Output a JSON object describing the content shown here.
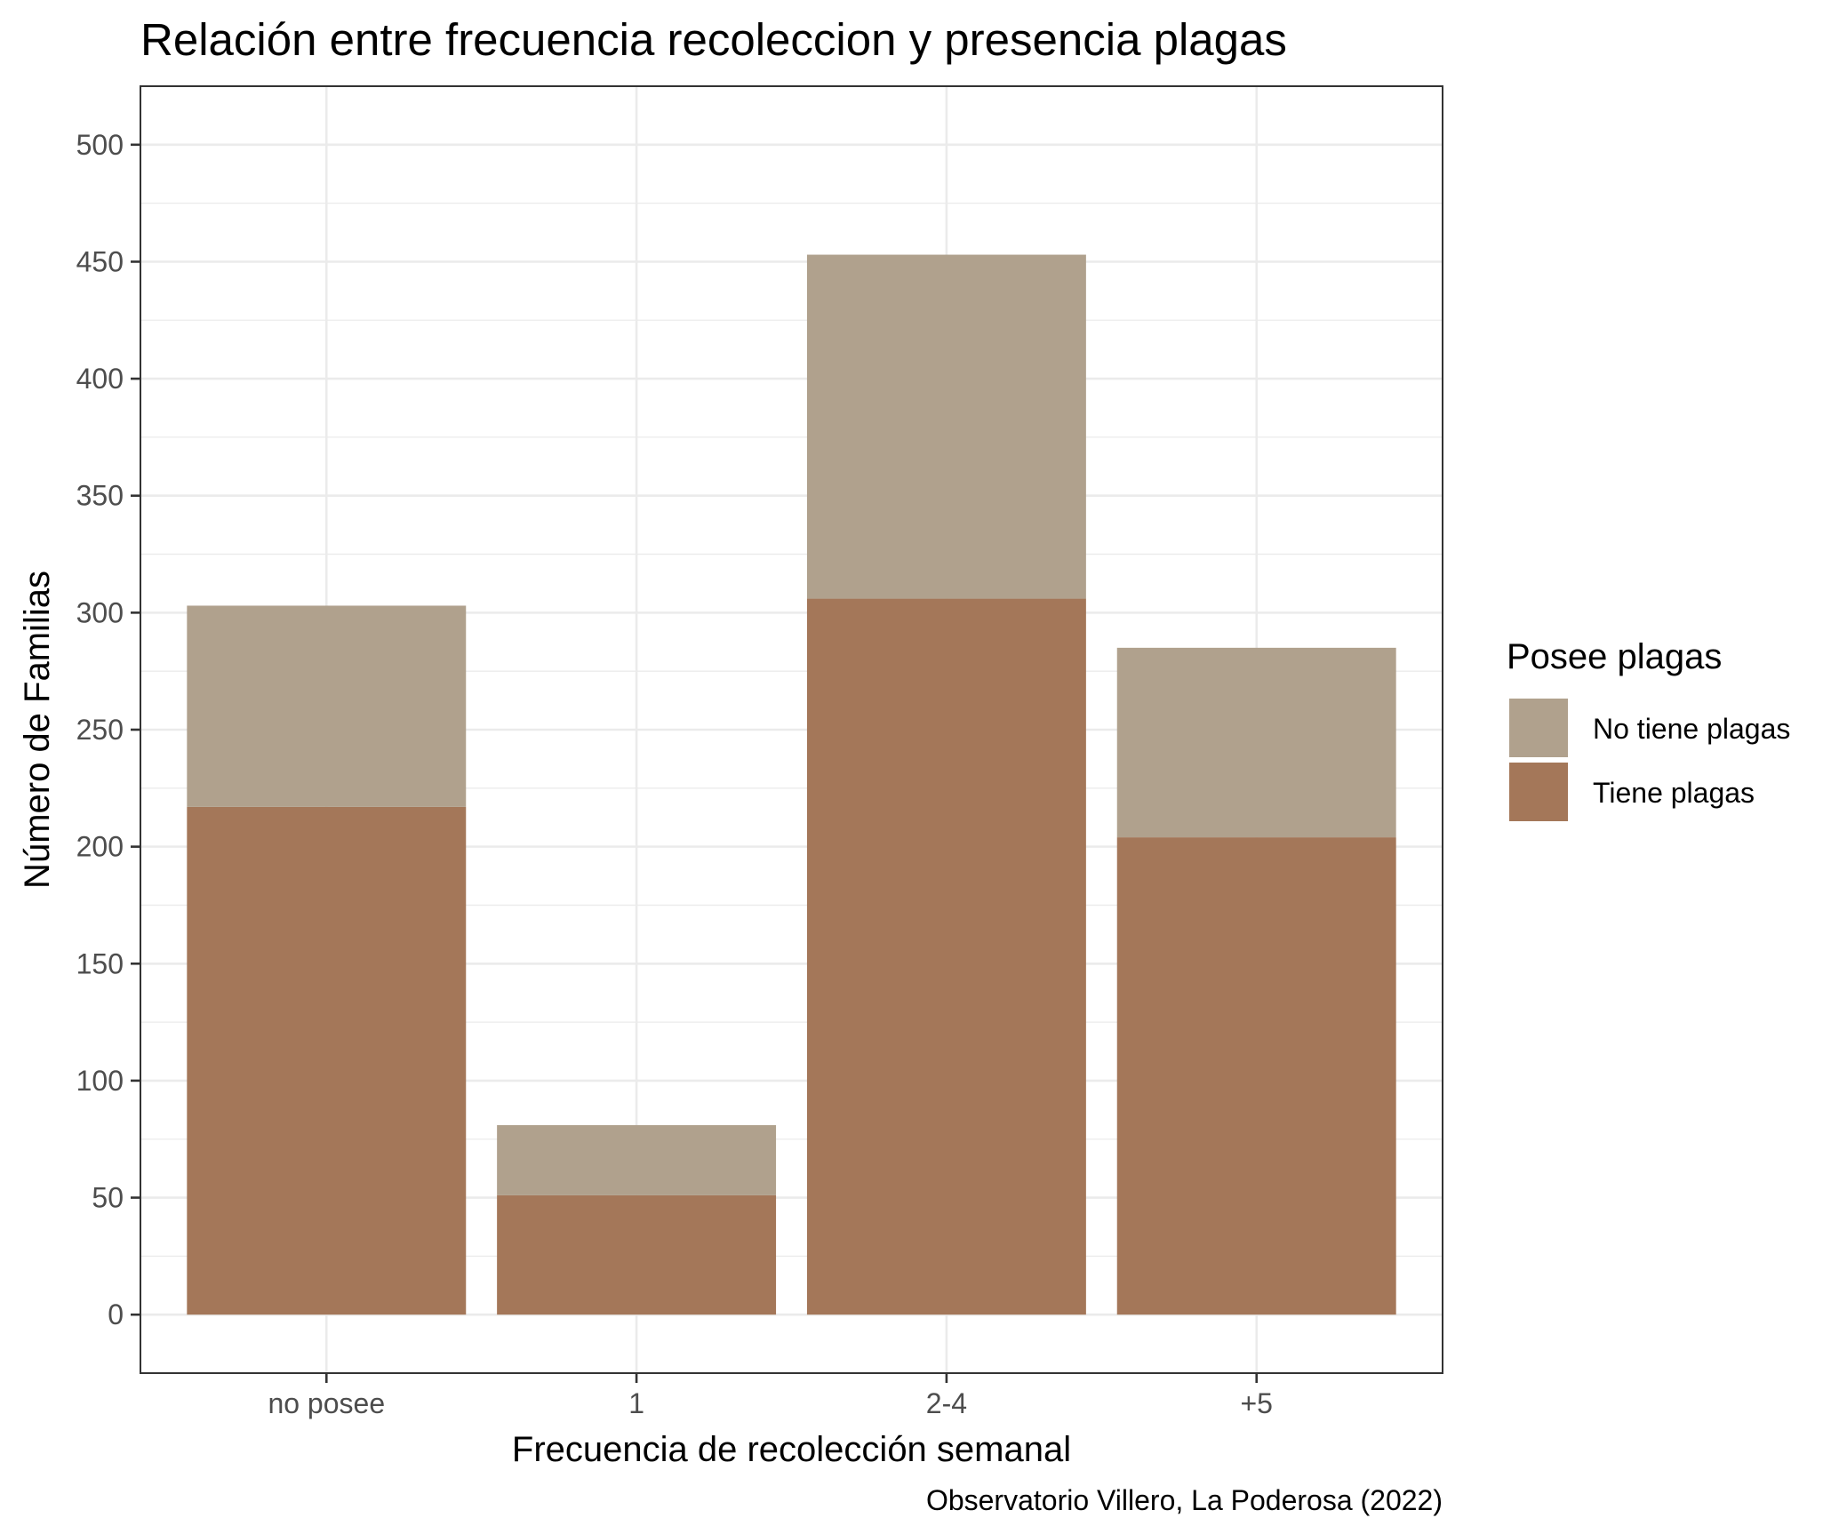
{
  "chart_data": {
    "type": "bar",
    "stacked": true,
    "title": "Relación entre frecuencia recoleccion y presencia plagas",
    "xlabel": "Frecuencia de recolección semanal",
    "ylabel": "Número de Familias",
    "caption": "Observatorio Villero, La Poderosa (2022)",
    "categories": [
      "no posee",
      "1",
      "2-4",
      "+5"
    ],
    "series": [
      {
        "name": "Tiene plagas",
        "values": [
          217,
          51,
          306,
          204
        ],
        "color": "#A47759"
      },
      {
        "name": "No tiene plagas",
        "values": [
          86,
          30,
          147,
          81
        ],
        "color": "#B0A18D"
      }
    ],
    "ylim": [
      -25,
      525
    ],
    "yticks": [
      0,
      50,
      100,
      150,
      200,
      250,
      300,
      350,
      400,
      450,
      500
    ],
    "ytick_labels": [
      "0",
      "50",
      "100",
      "150",
      "200",
      "250",
      "300",
      "350",
      "400",
      "450",
      "500"
    ],
    "grid": true,
    "legend": {
      "title": "Posee plagas",
      "position": "right",
      "entries": [
        "No tiene plagas",
        "Tiene plagas"
      ]
    },
    "colors": {
      "background": "#FFFFFF",
      "grid": "#EBEBEB",
      "panel_border": "#333333",
      "tick_text": "#4D4D4D"
    }
  }
}
